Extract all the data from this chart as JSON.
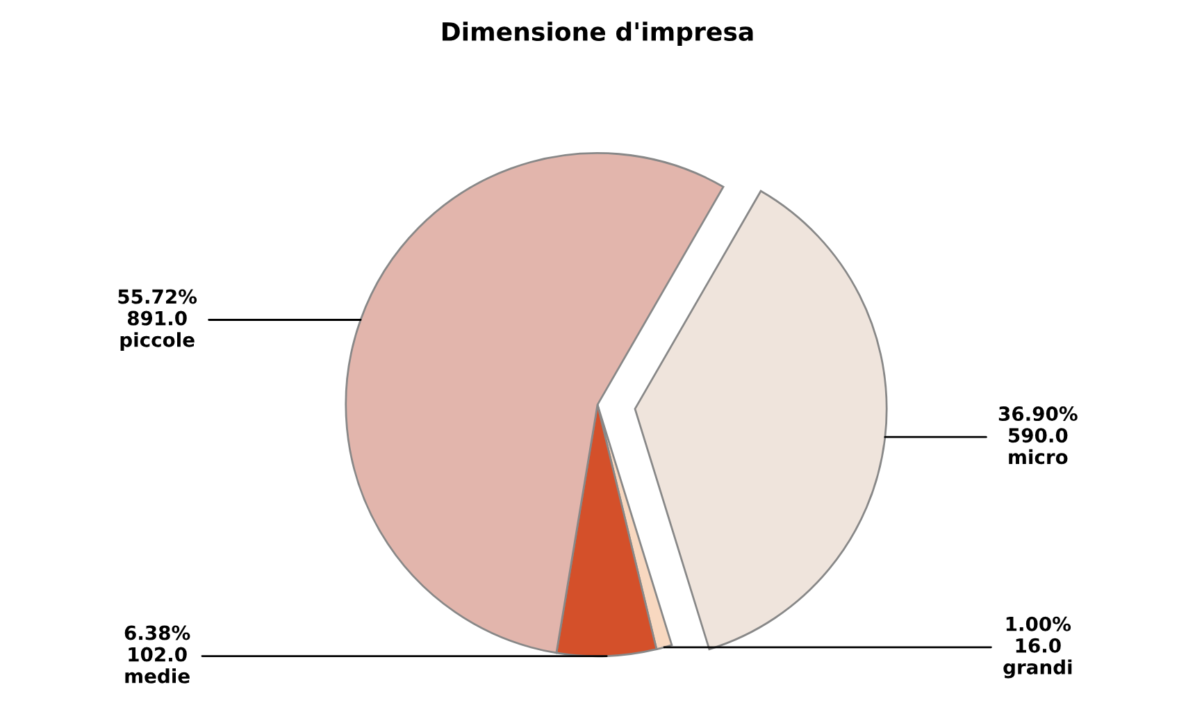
{
  "chart_data": {
    "type": "pie",
    "title": "Dimensione d'impresa",
    "categories": [
      "micro",
      "grandi",
      "medie",
      "piccole"
    ],
    "values": [
      590.0,
      16.0,
      102.0,
      891.0
    ],
    "value_labels": [
      "36.90%\n590.0",
      "1.00%\n16.0",
      "6.38%\n102.0",
      "55.72%\n891.0"
    ],
    "colors": [
      "#efe4dc",
      "#f8d8c0",
      "#d4502a",
      "#e2b5ac"
    ],
    "legend": false
  }
}
